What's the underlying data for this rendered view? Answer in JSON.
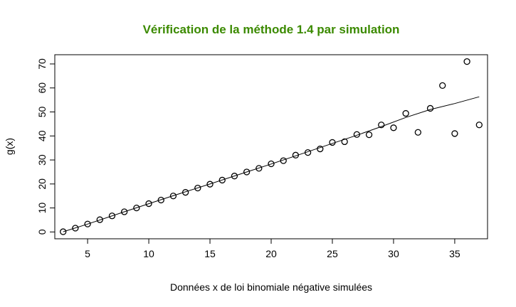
{
  "colors": {
    "title": "#3b8a00",
    "ink": "#000000",
    "background": "#ffffff"
  },
  "chart_data": {
    "type": "scatter",
    "title": "Vérification de la méthode 1.4 par simulation",
    "xlabel": "Données x de loi binomiale négative simulées",
    "ylabel": "g(x)",
    "xlim": [
      2.32,
      37.68
    ],
    "ylim": [
      -2.84,
      73.84
    ],
    "xticks": [
      5,
      10,
      15,
      20,
      25,
      30,
      35
    ],
    "yticks": [
      0,
      10,
      20,
      30,
      40,
      50,
      60,
      70
    ],
    "grid": false,
    "series": [
      {
        "kind": "points",
        "marker": "open-circle",
        "x": [
          3,
          4,
          5,
          6,
          7,
          8,
          9,
          10,
          11,
          12,
          13,
          14,
          15,
          16,
          17,
          18,
          19,
          20,
          21,
          22,
          23,
          24,
          25,
          26,
          27,
          28,
          29,
          30,
          31,
          32,
          33,
          34,
          35,
          36,
          37
        ],
        "y": [
          0.1,
          1.6,
          3.3,
          5.1,
          6.7,
          8.4,
          10.0,
          11.8,
          13.3,
          15.0,
          16.5,
          18.3,
          19.9,
          21.6,
          23.3,
          25.0,
          26.5,
          28.4,
          29.7,
          32.0,
          33.1,
          34.6,
          37.3,
          37.6,
          40.6,
          40.5,
          44.6,
          43.4,
          49.4,
          41.5,
          51.5,
          61.0,
          41.0,
          71.0,
          44.6
        ]
      },
      {
        "kind": "line",
        "x": [
          3,
          5,
          8,
          10,
          12,
          15,
          18,
          20,
          22,
          25,
          27,
          29,
          31,
          33,
          35,
          37
        ],
        "y": [
          0.1,
          3.3,
          8.4,
          11.8,
          15.1,
          20.0,
          25.0,
          28.3,
          31.7,
          36.9,
          40.3,
          43.9,
          47.7,
          51.0,
          53.5,
          56.3
        ]
      }
    ]
  }
}
